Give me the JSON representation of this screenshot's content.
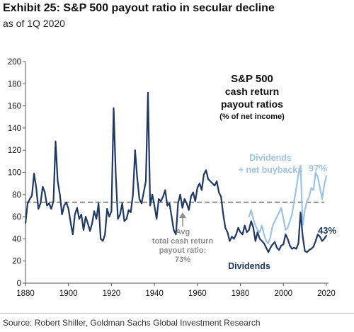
{
  "header": {
    "title": "Exhibit 25: S&P 500 payout ratio in secular decline",
    "subtitle": "as of 1Q 2020"
  },
  "footer": {
    "source": "Source: Robert Shiller, Goldman Sachs Global Investment Research"
  },
  "colors": {
    "dividends": "#1f3864",
    "dividends_plus_buybacks": "#9dc3e6",
    "average_line": "#8c8c8c",
    "axis": "#555555",
    "text": "#111111"
  },
  "chart_data": {
    "type": "line",
    "title": "",
    "xlabel": "",
    "ylabel": "",
    "xlim": [
      1880,
      2021
    ],
    "ylim": [
      0,
      200
    ],
    "x_ticks": [
      1880,
      1900,
      1920,
      1940,
      1960,
      1980,
      2000,
      2020
    ],
    "y_ticks": [
      0,
      20,
      40,
      60,
      80,
      100,
      120,
      140,
      160,
      180,
      200
    ],
    "grid": false,
    "annotations": {
      "box_title": "S&P 500",
      "box_line2": "cash return",
      "box_line3": "payout ratios",
      "box_unit": "(% of net income)",
      "buyback_label_line1": "Dividends",
      "buyback_label_line2": "+ net buybacks",
      "dividends_label": "Dividends",
      "avg_line1": "Avg",
      "avg_line2": "total cash return",
      "avg_line3": "payout ratio:",
      "avg_line4": "73%",
      "end_value_total": "97%",
      "end_value_dividends": "43%"
    },
    "average": 73,
    "series": [
      {
        "key": "dividends",
        "x": [
          1880,
          1881,
          1882,
          1883,
          1884,
          1885,
          1886,
          1887,
          1888,
          1889,
          1890,
          1891,
          1892,
          1893,
          1894,
          1895,
          1896,
          1897,
          1898,
          1899,
          1900,
          1901,
          1902,
          1903,
          1904,
          1905,
          1906,
          1907,
          1908,
          1909,
          1910,
          1911,
          1912,
          1913,
          1914,
          1915,
          1916,
          1917,
          1918,
          1919,
          1920,
          1921,
          1922,
          1923,
          1924,
          1925,
          1926,
          1927,
          1928,
          1929,
          1930,
          1931,
          1932,
          1933,
          1934,
          1935,
          1936,
          1937,
          1938,
          1939,
          1940,
          1941,
          1942,
          1943,
          1944,
          1945,
          1946,
          1947,
          1948,
          1949,
          1950,
          1951,
          1952,
          1953,
          1954,
          1955,
          1956,
          1957,
          1958,
          1959,
          1960,
          1961,
          1962,
          1963,
          1964,
          1965,
          1966,
          1967,
          1968,
          1969,
          1970,
          1971,
          1972,
          1973,
          1974,
          1975,
          1976,
          1977,
          1978,
          1979,
          1980,
          1981,
          1982,
          1983,
          1984,
          1985,
          1986,
          1987,
          1988,
          1989,
          1990,
          1991,
          1992,
          1993,
          1994,
          1995,
          1996,
          1997,
          1998,
          1999,
          2000,
          2001,
          2002,
          2003,
          2004,
          2005,
          2006,
          2007,
          2008,
          2009,
          2010,
          2011,
          2012,
          2013,
          2014,
          2015,
          2016,
          2017,
          2018,
          2019,
          2020
        ],
        "values": [
          54,
          72,
          76,
          79,
          99,
          86,
          67,
          72,
          87,
          82,
          70,
          72,
          67,
          74,
          128,
          92,
          80,
          62,
          70,
          73,
          67,
          55,
          44,
          62,
          68,
          58,
          62,
          48,
          60,
          54,
          47,
          54,
          65,
          58,
          72,
          40,
          38,
          44,
          67,
          60,
          65,
          158,
          98,
          58,
          62,
          72,
          56,
          58,
          66,
          64,
          80,
          120,
          95,
          76,
          72,
          82,
          92,
          172,
          70,
          80,
          70,
          58,
          76,
          74,
          78,
          84,
          70,
          72,
          60,
          48,
          44,
          72,
          80,
          68,
          76,
          72,
          66,
          78,
          82,
          74,
          86,
          90,
          84,
          98,
          102,
          94,
          92,
          90,
          88,
          92,
          82,
          78,
          62,
          50,
          46,
          38,
          42,
          40,
          44,
          50,
          46,
          44,
          52,
          46,
          48,
          56,
          50,
          38,
          46,
          40,
          38,
          36,
          32,
          28,
          32,
          35,
          37,
          32,
          30,
          34,
          35,
          44,
          40,
          34,
          31,
          32,
          31,
          36,
          64,
          42,
          29,
          28,
          30,
          31,
          33,
          38,
          44,
          42,
          38,
          40,
          43
        ]
      },
      {
        "key": "dividends_plus_buybacks",
        "x": [
          1984,
          1985,
          1986,
          1987,
          1988,
          1989,
          1990,
          1991,
          1992,
          1993,
          1994,
          1995,
          1996,
          1997,
          1998,
          1999,
          2000,
          2001,
          2002,
          2003,
          2004,
          2005,
          2006,
          2007,
          2008,
          2009,
          2010,
          2011,
          2012,
          2013,
          2014,
          2015,
          2016,
          2017,
          2018,
          2019,
          2020
        ],
        "values": [
          60,
          66,
          58,
          52,
          48,
          46,
          52,
          44,
          38,
          36,
          42,
          52,
          56,
          60,
          64,
          68,
          58,
          48,
          50,
          56,
          62,
          74,
          86,
          98,
          106,
          52,
          66,
          74,
          78,
          86,
          84,
          100,
          96,
          86,
          76,
          88,
          97
        ]
      }
    ]
  }
}
